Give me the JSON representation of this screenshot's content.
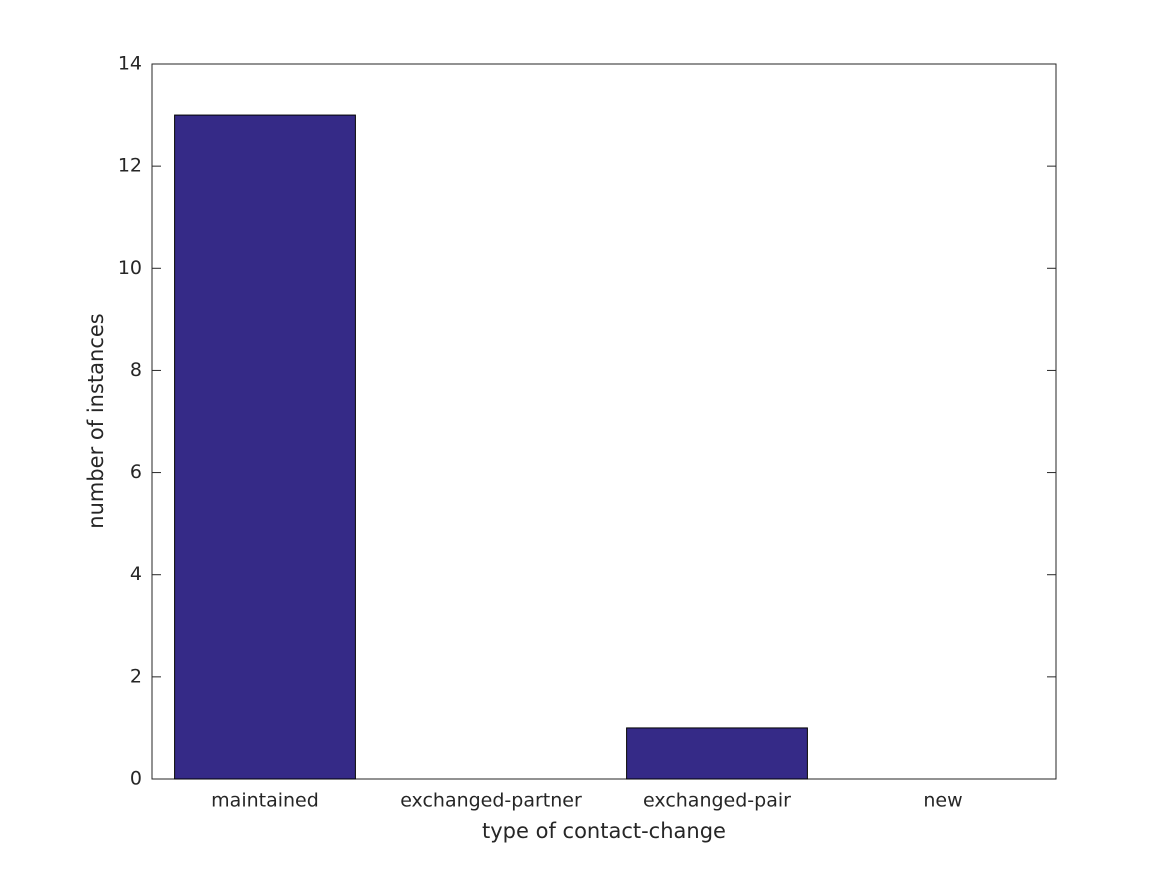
{
  "chart_data": {
    "type": "bar",
    "x_label": "type of contact-change",
    "y_label": "number of instances",
    "categories": [
      "maintained",
      "exchanged-partner",
      "exchanged-pair",
      "new"
    ],
    "values": [
      13,
      0,
      1,
      0
    ],
    "color": "#352a87",
    "ylim": [
      0,
      14
    ],
    "yticks": [
      0,
      2,
      4,
      6,
      8,
      10,
      12,
      14
    ],
    "grid": false
  }
}
